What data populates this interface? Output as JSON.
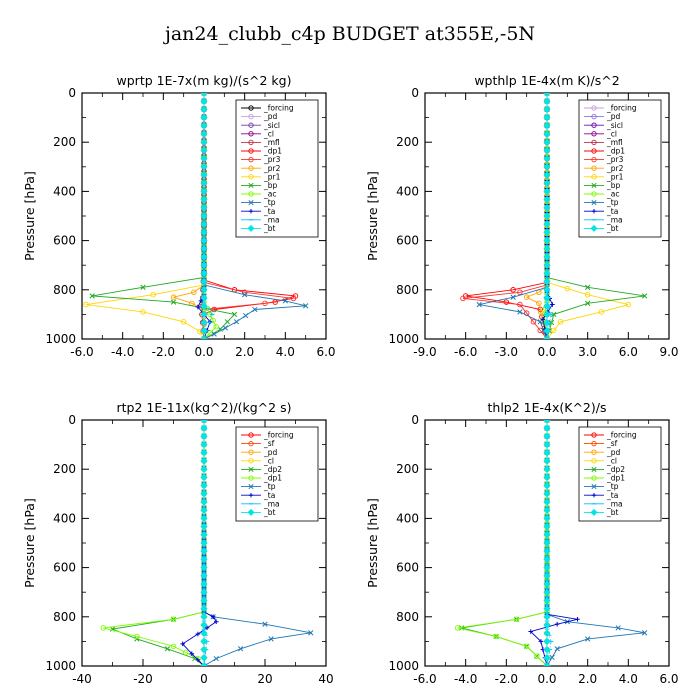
{
  "figure_title": "jan24_clubb_c4p  BUDGET at355E,-5N",
  "chart_data": [
    {
      "type": "line",
      "title": "wprtp   1E-7x(m kg)/(s^2 kg)",
      "ylabel": "Pressure [hPa]",
      "xlim": [
        -6,
        6
      ],
      "ylim": [
        1000,
        0
      ],
      "y_reversed": true,
      "xticks": [
        "-6.0",
        "-4.0",
        "-2.0",
        "0.0",
        "2.0",
        "4.0",
        "6.0"
      ],
      "yticks": [
        "0",
        "200",
        "400",
        "600",
        "800",
        "1000"
      ],
      "legend_position": "top-right",
      "series": [
        {
          "name": "_forcing",
          "color": "#000000",
          "marker": "o",
          "x": [
            0,
            0,
            0,
            0,
            0,
            0,
            0
          ],
          "y": [
            0,
            200,
            400,
            600,
            800,
            900,
            1000
          ]
        },
        {
          "name": "_pd",
          "color": "#c9a0dc",
          "marker": "o",
          "x": [
            0,
            0,
            0
          ],
          "y": [
            0,
            500,
            1000
          ]
        },
        {
          "name": "_sicl",
          "color": "#7b3fa0",
          "marker": "o",
          "x": [
            0,
            0,
            0
          ],
          "y": [
            0,
            500,
            1000
          ]
        },
        {
          "name": "_cl",
          "color": "#8b008b",
          "marker": "o",
          "x": [
            0,
            0,
            -0.1,
            0
          ],
          "y": [
            0,
            700,
            900,
            1000
          ]
        },
        {
          "name": "_mfl",
          "color": "#c0304f",
          "marker": "o",
          "x": [
            0,
            0,
            -0.1,
            0
          ],
          "y": [
            0,
            700,
            900,
            1000
          ]
        },
        {
          "name": "_dp1",
          "color": "#ff0000",
          "marker": "o",
          "x": [
            0,
            0,
            1.5,
            4.5,
            3.5,
            0.5,
            0,
            0
          ],
          "y": [
            0,
            760,
            800,
            825,
            850,
            880,
            900,
            1000
          ]
        },
        {
          "name": "_pr3",
          "color": "#ff3030",
          "marker": "o",
          "x": [
            0,
            0,
            2,
            4.4,
            3,
            0,
            0
          ],
          "y": [
            0,
            770,
            810,
            835,
            855,
            880,
            1000
          ]
        },
        {
          "name": "_pr2",
          "color": "#ffa500",
          "marker": "o",
          "x": [
            0,
            0,
            -0.5,
            -1.5,
            -0.6,
            0,
            0
          ],
          "y": [
            0,
            780,
            810,
            830,
            855,
            880,
            1000
          ]
        },
        {
          "name": "_pr1",
          "color": "#ffd700",
          "marker": "o",
          "x": [
            0,
            0,
            -2.5,
            -5.8,
            -3,
            -1,
            -0.2,
            0
          ],
          "y": [
            0,
            780,
            820,
            860,
            890,
            930,
            970,
            1000
          ]
        },
        {
          "name": "_bp",
          "color": "#22aa22",
          "marker": "x",
          "x": [
            0,
            0,
            -3,
            -5.5,
            -1.5,
            1.5,
            0.8,
            0
          ],
          "y": [
            0,
            750,
            790,
            825,
            850,
            900,
            960,
            1000
          ]
        },
        {
          "name": "_ac",
          "color": "#7cfc00",
          "marker": "o",
          "x": [
            0,
            0,
            0.3,
            0.6,
            0
          ],
          "y": [
            0,
            850,
            900,
            950,
            1000
          ]
        },
        {
          "name": "_tp",
          "color": "#1f77b4",
          "marker": "x",
          "x": [
            0,
            0,
            2,
            4,
            5,
            2.5,
            1.6,
            0.5,
            0
          ],
          "y": [
            0,
            780,
            820,
            845,
            865,
            880,
            930,
            980,
            1000
          ]
        },
        {
          "name": "_ta",
          "color": "#0000cd",
          "marker": "+",
          "x": [
            0,
            0,
            -0.3,
            0.3,
            0
          ],
          "y": [
            0,
            820,
            870,
            930,
            1000
          ]
        },
        {
          "name": "_ma",
          "color": "#00bfff",
          "marker": "-",
          "x": [
            0,
            0,
            0.4,
            0
          ],
          "y": [
            0,
            850,
            900,
            1000
          ]
        },
        {
          "name": "_bt",
          "color": "#00e5e5",
          "marker": "diamond",
          "x": [
            0,
            0,
            0
          ],
          "y": [
            0,
            500,
            1000
          ]
        }
      ]
    },
    {
      "type": "line",
      "title": "wpthlp   1E-4x(m K)/s^2",
      "ylabel": "Pressure [hPa]",
      "xlim": [
        -9,
        9
      ],
      "ylim": [
        1000,
        0
      ],
      "y_reversed": true,
      "xticks": [
        "-9.0",
        "-6.0",
        "-3.0",
        "0.0",
        "3.0",
        "6.0",
        "9.0"
      ],
      "yticks": [
        "0",
        "200",
        "400",
        "600",
        "800",
        "1000"
      ],
      "legend_position": "top-right",
      "series": [
        {
          "name": "_forcing",
          "color": "#c9a0dc",
          "marker": "o",
          "x": [
            0,
            0,
            0,
            0
          ],
          "y": [
            0,
            500,
            800,
            1000
          ]
        },
        {
          "name": "_pd",
          "color": "#9370db",
          "marker": "o",
          "x": [
            0,
            0,
            0
          ],
          "y": [
            0,
            500,
            1000
          ]
        },
        {
          "name": "_sicl",
          "color": "#6a0dad",
          "marker": "o",
          "x": [
            0,
            0,
            0
          ],
          "y": [
            0,
            500,
            1000
          ]
        },
        {
          "name": "_cl",
          "color": "#8b008b",
          "marker": "o",
          "x": [
            0,
            0,
            0
          ],
          "y": [
            0,
            500,
            1000
          ]
        },
        {
          "name": "_mfl",
          "color": "#c0304f",
          "marker": "o",
          "x": [
            0,
            0,
            0
          ],
          "y": [
            0,
            500,
            1000
          ]
        },
        {
          "name": "_dp1",
          "color": "#ff0000",
          "marker": "o",
          "x": [
            0,
            0,
            -2.5,
            -6,
            -3,
            -0.5,
            0
          ],
          "y": [
            0,
            770,
            800,
            825,
            850,
            880,
            1000
          ]
        },
        {
          "name": "_pr3",
          "color": "#ff3030",
          "marker": "o",
          "x": [
            0,
            0,
            -2,
            -6.2,
            -2,
            0
          ],
          "y": [
            0,
            780,
            810,
            835,
            860,
            1000
          ]
        },
        {
          "name": "_pr2",
          "color": "#ffa500",
          "marker": "o",
          "x": [
            0,
            0,
            -0.6,
            -1.5,
            -0.6,
            0
          ],
          "y": [
            0,
            780,
            810,
            830,
            855,
            1000
          ]
        },
        {
          "name": "_pr1",
          "color": "#ffd700",
          "marker": "o",
          "x": [
            0,
            0,
            3,
            6,
            4,
            1,
            0
          ],
          "y": [
            0,
            770,
            820,
            860,
            890,
            930,
            1000
          ]
        },
        {
          "name": "_bp",
          "color": "#22aa22",
          "marker": "x",
          "x": [
            0,
            0,
            3,
            7.2,
            3,
            0.5,
            0
          ],
          "y": [
            0,
            750,
            790,
            825,
            855,
            900,
            1000
          ]
        },
        {
          "name": "_ac",
          "color": "#7cfc00",
          "marker": "o",
          "x": [
            0,
            0,
            -0.2,
            0
          ],
          "y": [
            0,
            850,
            900,
            1000
          ]
        },
        {
          "name": "_tp",
          "color": "#1f77b4",
          "marker": "x",
          "x": [
            0,
            0,
            -2.5,
            -5,
            -2,
            -0.5,
            0
          ],
          "y": [
            0,
            790,
            830,
            860,
            890,
            930,
            1000
          ]
        },
        {
          "name": "_ta",
          "color": "#0000cd",
          "marker": "+",
          "x": [
            0,
            0,
            0.4,
            -0.3,
            0
          ],
          "y": [
            0,
            810,
            860,
            920,
            1000
          ]
        },
        {
          "name": "_ma",
          "color": "#00bfff",
          "marker": "-",
          "x": [
            0,
            0,
            0.3,
            0
          ],
          "y": [
            0,
            850,
            900,
            1000
          ]
        },
        {
          "name": "_bt",
          "color": "#00e5e5",
          "marker": "diamond",
          "x": [
            0,
            0,
            0
          ],
          "y": [
            0,
            500,
            1000
          ]
        }
      ]
    },
    {
      "type": "line",
      "title": "rtp2   1E-11x(kg^2)/(kg^2 s)",
      "ylabel": "Pressure [hPa]",
      "xlim": [
        -40,
        40
      ],
      "ylim": [
        1000,
        0
      ],
      "y_reversed": true,
      "xticks": [
        "-40",
        "-20",
        "0",
        "20",
        "40"
      ],
      "yticks": [
        "0",
        "200",
        "400",
        "600",
        "800",
        "1000"
      ],
      "legend_position": "top-right",
      "series": [
        {
          "name": "_forcing",
          "color": "#ff0000",
          "marker": "o",
          "x": [
            0,
            0,
            0,
            0,
            0,
            0
          ],
          "y": [
            0,
            200,
            400,
            600,
            800,
            1000
          ]
        },
        {
          "name": "_sf",
          "color": "#ff4500",
          "marker": "o",
          "x": [
            0,
            0,
            0
          ],
          "y": [
            0,
            500,
            1000
          ]
        },
        {
          "name": "_pd",
          "color": "#ffa500",
          "marker": "o",
          "x": [
            0,
            0,
            0
          ],
          "y": [
            0,
            500,
            1000
          ]
        },
        {
          "name": "_cl",
          "color": "#ffd700",
          "marker": "o",
          "x": [
            0,
            0,
            0
          ],
          "y": [
            0,
            500,
            1000
          ]
        },
        {
          "name": "_dp2",
          "color": "#22aa22",
          "marker": "x",
          "x": [
            0,
            0,
            -10,
            -30,
            -22,
            -12,
            -3,
            0
          ],
          "y": [
            0,
            780,
            810,
            850,
            890,
            930,
            970,
            1000
          ]
        },
        {
          "name": "_dp1",
          "color": "#7cfc00",
          "marker": "o",
          "x": [
            0,
            0,
            -10,
            -33,
            -22,
            -10,
            -2,
            0
          ],
          "y": [
            0,
            780,
            810,
            845,
            880,
            920,
            970,
            1000
          ]
        },
        {
          "name": "_tp",
          "color": "#1f77b4",
          "marker": "x",
          "x": [
            0,
            0,
            3,
            20,
            35,
            22,
            12,
            4,
            0
          ],
          "y": [
            0,
            780,
            800,
            830,
            865,
            890,
            930,
            970,
            1000
          ]
        },
        {
          "name": "_ta",
          "color": "#0000cd",
          "marker": "+",
          "x": [
            0,
            0,
            3,
            4,
            -2,
            -7,
            -4,
            0
          ],
          "y": [
            0,
            780,
            800,
            820,
            870,
            910,
            950,
            1000
          ]
        },
        {
          "name": "_ma",
          "color": "#00bfff",
          "marker": "-",
          "x": [
            0,
            0,
            1,
            0
          ],
          "y": [
            0,
            850,
            900,
            1000
          ]
        },
        {
          "name": "_bt",
          "color": "#00e5e5",
          "marker": "diamond",
          "x": [
            0,
            0,
            0
          ],
          "y": [
            0,
            500,
            1000
          ]
        }
      ]
    },
    {
      "type": "line",
      "title": "thlp2   1E-4x(K^2)/s",
      "ylabel": "Pressure [hPa]",
      "xlim": [
        -6,
        6
      ],
      "ylim": [
        1000,
        0
      ],
      "y_reversed": true,
      "xticks": [
        "-6.0",
        "-4.0",
        "-2.0",
        "0.0",
        "2.0",
        "4.0",
        "6.0"
      ],
      "yticks": [
        "0",
        "200",
        "400",
        "600",
        "800",
        "1000"
      ],
      "legend_position": "top-right",
      "series": [
        {
          "name": "_forcing",
          "color": "#ff0000",
          "marker": "o",
          "x": [
            0,
            0,
            0,
            0,
            0,
            0
          ],
          "y": [
            0,
            200,
            400,
            600,
            800,
            1000
          ]
        },
        {
          "name": "_sf",
          "color": "#ff4500",
          "marker": "o",
          "x": [
            0,
            0,
            0
          ],
          "y": [
            0,
            500,
            1000
          ]
        },
        {
          "name": "_pd",
          "color": "#ffa500",
          "marker": "o",
          "x": [
            0,
            0,
            0
          ],
          "y": [
            0,
            500,
            1000
          ]
        },
        {
          "name": "_cl",
          "color": "#ffd700",
          "marker": "o",
          "x": [
            0,
            0,
            0
          ],
          "y": [
            0,
            500,
            1000
          ]
        },
        {
          "name": "_dp2",
          "color": "#22aa22",
          "marker": "x",
          "x": [
            0,
            0,
            -1.5,
            -4.2,
            -2.5,
            -1,
            0
          ],
          "y": [
            0,
            780,
            810,
            845,
            880,
            920,
            1000
          ]
        },
        {
          "name": "_dp1",
          "color": "#7cfc00",
          "marker": "o",
          "x": [
            0,
            0,
            -1.5,
            -4.4,
            -2.5,
            -1,
            0
          ],
          "y": [
            0,
            780,
            810,
            845,
            880,
            920,
            1000
          ]
        },
        {
          "name": "_tp",
          "color": "#1f77b4",
          "marker": "x",
          "x": [
            0,
            0,
            1,
            3.5,
            4.8,
            2,
            0.5,
            0
          ],
          "y": [
            0,
            790,
            820,
            845,
            865,
            890,
            930,
            1000
          ]
        },
        {
          "name": "_ta",
          "color": "#0000cd",
          "marker": "+",
          "x": [
            0,
            0,
            1.5,
            0.5,
            -0.8,
            -0.3,
            0
          ],
          "y": [
            0,
            790,
            810,
            830,
            860,
            900,
            1000
          ]
        },
        {
          "name": "_ma",
          "color": "#00bfff",
          "marker": "-",
          "x": [
            0,
            0,
            0.2,
            0
          ],
          "y": [
            0,
            850,
            900,
            1000
          ]
        },
        {
          "name": "_bt",
          "color": "#00e5e5",
          "marker": "diamond",
          "x": [
            0,
            0,
            0
          ],
          "y": [
            0,
            500,
            1000
          ]
        }
      ]
    }
  ]
}
